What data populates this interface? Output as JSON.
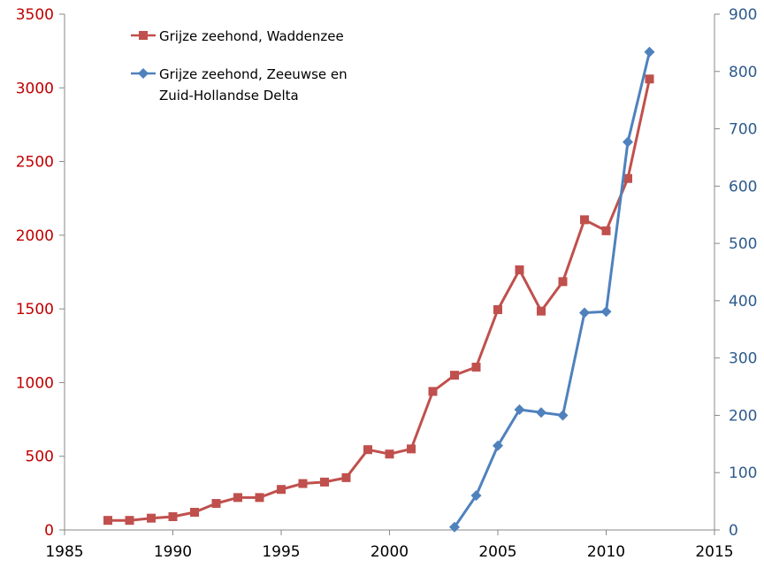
{
  "chart_data": {
    "type": "line",
    "title": "",
    "xlabel": "",
    "ylabel": "",
    "xlim": [
      1985,
      2015
    ],
    "x_ticks": [
      "1985",
      "1990",
      "1995",
      "2000",
      "2005",
      "2010",
      "2015"
    ],
    "y_left_lim": [
      0,
      3500
    ],
    "y_left_ticks": [
      "0",
      "500",
      "1000",
      "1500",
      "2000",
      "2500",
      "3000",
      "3500"
    ],
    "y_right_lim": [
      0,
      900
    ],
    "y_right_ticks": [
      "0",
      "100",
      "200",
      "300",
      "400",
      "500",
      "600",
      "700",
      "800",
      "900"
    ],
    "grid": false,
    "legend_position": "top-left",
    "series": [
      {
        "name": "Grijze zeehond, Waddenzee",
        "axis": "left",
        "color": "#c0504d",
        "marker": "square",
        "x": [
          1987,
          1988,
          1989,
          1990,
          1991,
          1992,
          1993,
          1994,
          1995,
          1996,
          1997,
          1998,
          1999,
          2000,
          2001,
          2002,
          2003,
          2004,
          2005,
          2006,
          2007,
          2008,
          2009,
          2010,
          2011,
          2012
        ],
        "values": [
          65,
          65,
          80,
          90,
          120,
          180,
          220,
          220,
          275,
          315,
          325,
          355,
          545,
          515,
          550,
          940,
          1050,
          1105,
          1495,
          1765,
          1485,
          1685,
          2105,
          2030,
          2385,
          3060
        ]
      },
      {
        "name": "Grijze zeehond, Zeeuwse en Zuid-Hollandse Delta",
        "name_lines": [
          "Grijze zeehond, Zeeuwse en",
          "Zuid-Hollandse Delta"
        ],
        "axis": "right",
        "color": "#4f81bd",
        "marker": "diamond",
        "x": [
          2003,
          2004,
          2005,
          2006,
          2007,
          2008,
          2009,
          2010,
          2011,
          2012
        ],
        "values": [
          5,
          60,
          147,
          210,
          205,
          200,
          379,
          381,
          677,
          834
        ]
      }
    ]
  }
}
